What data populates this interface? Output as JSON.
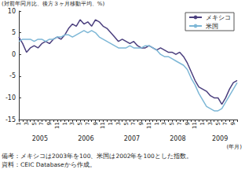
{
  "chart_data": {
    "type": "line",
    "y_label": "(対前年同月比、後方３ヶ月移動平均、%)",
    "x_label": "(年月)",
    "categories": [
      "1",
      null,
      "3",
      null,
      "5",
      null,
      "7",
      null,
      "9",
      null,
      "11",
      null,
      "1",
      null,
      "3",
      null,
      "5",
      null,
      "7",
      null,
      "9",
      null,
      "11",
      null,
      "1",
      null,
      "3",
      null,
      "5",
      null,
      "7",
      null,
      "9",
      null,
      "11",
      null,
      "1",
      null,
      "3",
      null,
      "5",
      null,
      "7",
      null,
      "9",
      null,
      "11",
      null,
      "1",
      null,
      "3",
      null,
      "5",
      null,
      "7",
      null,
      "9",
      null
    ],
    "years": [
      "2005",
      "2006",
      "2007",
      "2008",
      "2009"
    ],
    "series": [
      {
        "name": "メキシコ",
        "color": "#4b3f7e",
        "values": [
          4.0,
          2.5,
          0.5,
          1.5,
          2.0,
          1.5,
          2.5,
          3.0,
          2.5,
          3.5,
          4.0,
          3.5,
          4.5,
          6.0,
          7.0,
          6.5,
          8.0,
          7.0,
          7.5,
          6.5,
          8.0,
          7.5,
          6.5,
          6.0,
          5.0,
          4.0,
          3.0,
          3.5,
          3.0,
          2.5,
          3.0,
          2.0,
          1.5,
          1.5,
          2.0,
          1.5,
          1.0,
          1.5,
          1.0,
          0.5,
          0.5,
          0.0,
          0.5,
          -0.5,
          -2.0,
          -4.0,
          -6.0,
          -7.5,
          -8.0,
          -8.5,
          -9.5,
          -10.0,
          -10.0,
          -11.5,
          -10.0,
          -8.0,
          -6.5,
          -6.0
        ]
      },
      {
        "name": "米国",
        "color": "#7db7d6",
        "values": [
          3.0,
          3.5,
          3.5,
          3.5,
          3.0,
          3.5,
          3.5,
          3.0,
          3.5,
          3.5,
          4.0,
          4.0,
          4.5,
          4.5,
          4.0,
          4.5,
          5.0,
          5.5,
          5.0,
          5.5,
          5.0,
          4.0,
          3.5,
          3.0,
          2.5,
          2.0,
          1.5,
          1.5,
          1.5,
          2.0,
          1.5,
          1.5,
          1.5,
          2.0,
          2.0,
          1.5,
          1.0,
          0.0,
          -0.5,
          -0.5,
          -1.0,
          -1.5,
          -2.0,
          -2.5,
          -3.5,
          -5.5,
          -7.0,
          -9.0,
          -10.5,
          -12.0,
          -12.5,
          -13.0,
          -13.0,
          -12.5,
          -11.0,
          -9.5,
          -8.0,
          -6.5
        ]
      }
    ],
    "ylim": [
      -15,
      10
    ],
    "yticks": [
      -15,
      -10,
      -5,
      0,
      5,
      10
    ],
    "grid": false,
    "legend": "top-right",
    "notes": [
      "備考：メキシコは2003年を100、米国は2002年を100とした指数。",
      "資料：CEIC Databaseから作成。"
    ]
  }
}
